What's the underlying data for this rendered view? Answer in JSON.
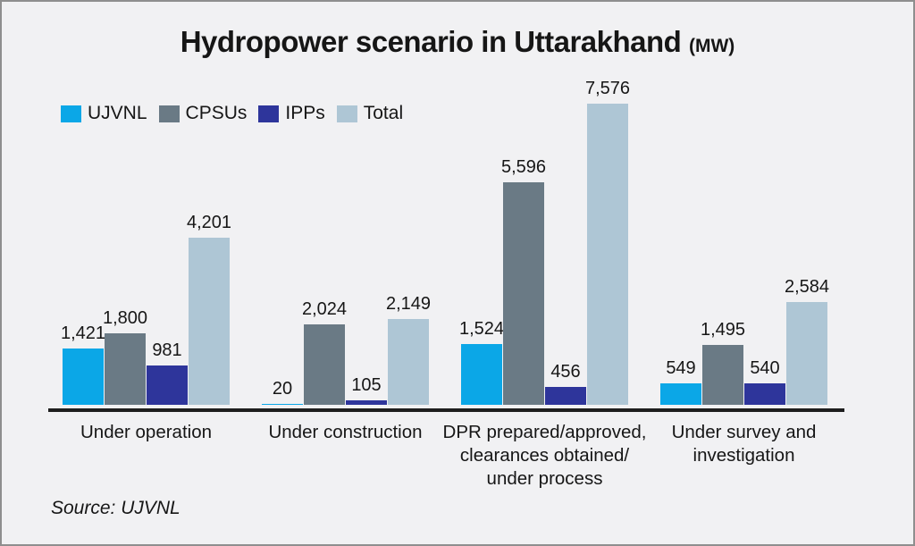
{
  "title": {
    "main": "Hydropower scenario in Uttarakhand",
    "unit": "(MW)"
  },
  "legend": [
    {
      "label": "UJVNL",
      "color": "#0ba7e7"
    },
    {
      "label": "CPSUs",
      "color": "#6a7a85"
    },
    {
      "label": "IPPs",
      "color": "#2e359b"
    },
    {
      "label": "Total",
      "color": "#aec6d5"
    }
  ],
  "source": "Source: UJVNL",
  "colors": {
    "background": "#f1f1f3",
    "frame_border": "#8e8e8e",
    "axis": "#1e1e1e",
    "text": "#161616"
  },
  "chart_data": {
    "type": "bar",
    "title": "Hydropower scenario in Uttarakhand (MW)",
    "xlabel": "",
    "ylabel": "",
    "grid": false,
    "legend_position": "top-left",
    "ylim": [
      0,
      8200
    ],
    "categories": [
      "Under operation",
      "Under construction",
      "DPR prepared/approved,\nclearances obtained/\nunder process",
      "Under survey and\ninvestigation"
    ],
    "series": [
      {
        "name": "UJVNL",
        "color": "#0ba7e7",
        "values": [
          1421,
          20,
          1524,
          549
        ]
      },
      {
        "name": "CPSUs",
        "color": "#6a7a85",
        "values": [
          1800,
          2024,
          5596,
          1495
        ]
      },
      {
        "name": "IPPs",
        "color": "#2e359b",
        "values": [
          981,
          105,
          456,
          540
        ]
      },
      {
        "name": "Total",
        "color": "#aec6d5",
        "values": [
          4201,
          2149,
          7576,
          2584
        ]
      }
    ]
  }
}
